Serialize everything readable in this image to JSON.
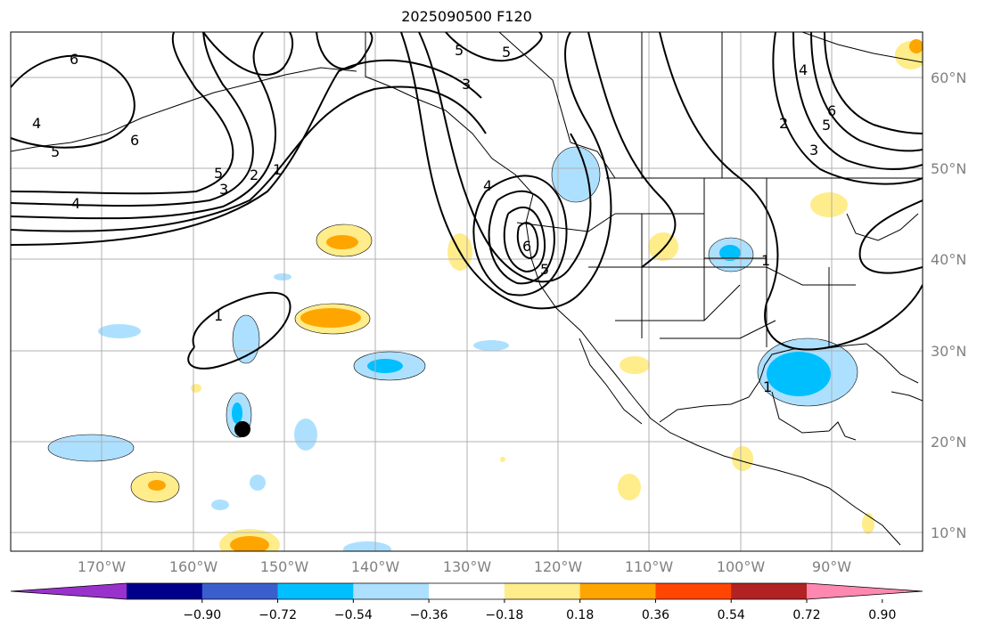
{
  "title": "2025090500 F120",
  "lon_labels": [
    "170°W",
    "160°W",
    "150°W",
    "140°W",
    "130°W",
    "120°W",
    "110°W",
    "100°W",
    "90°W"
  ],
  "lat_labels": [
    "60°N",
    "50°N",
    "40°N",
    "30°N",
    "20°N",
    "10°N"
  ],
  "contour_labels": [
    "6",
    "4",
    "5",
    "6",
    "5",
    "3",
    "2",
    "1",
    "4",
    "1",
    "3",
    "5",
    "5",
    "4",
    "6",
    "5",
    "2",
    "3",
    "6",
    "5",
    "1",
    "4",
    "1"
  ],
  "colorbar": {
    "colors": [
      "#9932CC",
      "#00008B",
      "#3A5FCD",
      "#00BFFF",
      "#ADE0FF",
      "#FFFFFF",
      "#FFEC8B",
      "#FFA500",
      "#FF4500",
      "#B22222",
      "#FF88B0"
    ],
    "tick_labels": [
      "−0.90",
      "−0.72",
      "−0.54",
      "−0.36",
      "−0.18",
      "0.18",
      "0.36",
      "0.54",
      "0.72",
      "0.90"
    ]
  },
  "marker": {
    "label": "dot",
    "color": "#000000"
  }
}
